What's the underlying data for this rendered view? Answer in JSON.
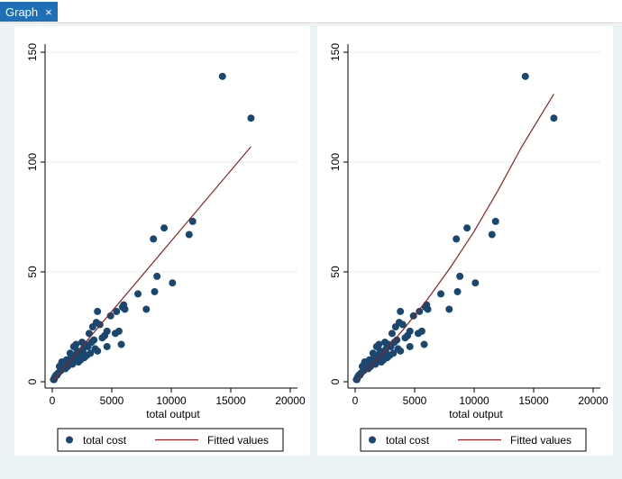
{
  "window": {
    "tab_label": "Graph",
    "close_glyph": "×",
    "close_icon": "close-icon"
  },
  "colors": {
    "tab_bg": "#1f6fb6",
    "outer_bg": "#eaf2f3",
    "plot_bg": "#ffffff",
    "marker": "#1a476f",
    "fit_line": "#8b2323",
    "grid": "#e6eef0"
  },
  "chart_data": [
    {
      "type": "scatter",
      "title": "",
      "xlabel": "total output",
      "ylabel": "",
      "xlim": [
        0,
        20000
      ],
      "ylim": [
        0,
        150
      ],
      "xticks": [
        0,
        5000,
        10000,
        15000,
        20000
      ],
      "yticks": [
        0,
        50,
        100,
        150
      ],
      "grid": true,
      "legend": [
        "total cost",
        "Fitted values"
      ],
      "legend_position": "bottom",
      "series": [
        {
          "name": "total cost",
          "kind": "markers",
          "points": [
            [
              14300,
              139
            ],
            [
              16700,
              120
            ],
            [
              11800,
              73
            ],
            [
              9400,
              70
            ],
            [
              11500,
              67
            ],
            [
              8500,
              65
            ],
            [
              8800,
              48
            ],
            [
              10100,
              45
            ],
            [
              8600,
              41
            ],
            [
              7200,
              40
            ],
            [
              6000,
              35
            ],
            [
              5900,
              34
            ],
            [
              6100,
              33
            ],
            [
              7900,
              33
            ],
            [
              5400,
              32
            ],
            [
              3800,
              32
            ],
            [
              4900,
              30
            ],
            [
              3700,
              27
            ],
            [
              3400,
              25
            ],
            [
              4000,
              26
            ],
            [
              3100,
              22
            ],
            [
              4600,
              23
            ],
            [
              4400,
              21
            ],
            [
              4200,
              20
            ],
            [
              5600,
              23
            ],
            [
              5300,
              22
            ],
            [
              5800,
              17
            ],
            [
              4600,
              16
            ],
            [
              3800,
              14
            ],
            [
              3300,
              18
            ],
            [
              3000,
              16
            ],
            [
              2800,
              17
            ],
            [
              2500,
              18
            ],
            [
              2600,
              15
            ],
            [
              2100,
              14
            ],
            [
              1800,
              16
            ],
            [
              2300,
              12
            ],
            [
              1500,
              13
            ],
            [
              1200,
              10
            ],
            [
              1600,
              11
            ],
            [
              1000,
              8
            ],
            [
              900,
              6
            ],
            [
              700,
              5
            ],
            [
              500,
              4
            ],
            [
              400,
              3
            ],
            [
              300,
              3
            ],
            [
              200,
              2
            ],
            [
              150,
              1
            ],
            [
              100,
              1
            ],
            [
              2000,
              10
            ],
            [
              2400,
              10
            ],
            [
              2900,
              12
            ],
            [
              3200,
              13
            ],
            [
              1300,
              7
            ],
            [
              1700,
              8
            ],
            [
              800,
              9
            ],
            [
              600,
              7
            ],
            [
              1100,
              6
            ],
            [
              2200,
              9
            ],
            [
              2700,
              11
            ],
            [
              1900,
              12
            ],
            [
              3500,
              19
            ],
            [
              3600,
              15
            ],
            [
              2000,
              17
            ],
            [
              1400,
              9
            ],
            [
              2600,
              13
            ]
          ]
        },
        {
          "name": "Fitted values",
          "kind": "line",
          "points": [
            [
              0,
              0
            ],
            [
              16700,
              107
            ]
          ]
        }
      ]
    },
    {
      "type": "scatter",
      "title": "",
      "xlabel": "total output",
      "ylabel": "",
      "xlim": [
        0,
        20000
      ],
      "ylim": [
        0,
        150
      ],
      "xticks": [
        0,
        5000,
        10000,
        15000,
        20000
      ],
      "yticks": [
        0,
        50,
        100,
        150
      ],
      "grid": true,
      "legend": [
        "total cost",
        "Fitted values"
      ],
      "legend_position": "bottom",
      "series": [
        {
          "name": "total cost",
          "kind": "markers",
          "points": [
            [
              14300,
              139
            ],
            [
              16700,
              120
            ],
            [
              11800,
              73
            ],
            [
              9400,
              70
            ],
            [
              11500,
              67
            ],
            [
              8500,
              65
            ],
            [
              8800,
              48
            ],
            [
              10100,
              45
            ],
            [
              8600,
              41
            ],
            [
              7200,
              40
            ],
            [
              6000,
              35
            ],
            [
              5900,
              34
            ],
            [
              6100,
              33
            ],
            [
              7900,
              33
            ],
            [
              5400,
              32
            ],
            [
              3800,
              32
            ],
            [
              4900,
              30
            ],
            [
              3700,
              27
            ],
            [
              3400,
              25
            ],
            [
              4000,
              26
            ],
            [
              3100,
              22
            ],
            [
              4600,
              23
            ],
            [
              4400,
              21
            ],
            [
              4200,
              20
            ],
            [
              5600,
              23
            ],
            [
              5300,
              22
            ],
            [
              5800,
              17
            ],
            [
              4600,
              16
            ],
            [
              3800,
              14
            ],
            [
              3300,
              18
            ],
            [
              3000,
              16
            ],
            [
              2800,
              17
            ],
            [
              2500,
              18
            ],
            [
              2600,
              15
            ],
            [
              2100,
              14
            ],
            [
              1800,
              16
            ],
            [
              2300,
              12
            ],
            [
              1500,
              13
            ],
            [
              1200,
              10
            ],
            [
              1600,
              11
            ],
            [
              1000,
              8
            ],
            [
              900,
              6
            ],
            [
              700,
              5
            ],
            [
              500,
              4
            ],
            [
              400,
              3
            ],
            [
              300,
              3
            ],
            [
              200,
              2
            ],
            [
              150,
              1
            ],
            [
              100,
              1
            ],
            [
              2000,
              10
            ],
            [
              2400,
              10
            ],
            [
              2900,
              12
            ],
            [
              3200,
              13
            ],
            [
              1300,
              7
            ],
            [
              1700,
              8
            ],
            [
              800,
              9
            ],
            [
              600,
              7
            ],
            [
              1100,
              6
            ],
            [
              2200,
              9
            ],
            [
              2700,
              11
            ],
            [
              1900,
              12
            ],
            [
              3500,
              19
            ],
            [
              3600,
              15
            ],
            [
              2000,
              17
            ],
            [
              1400,
              9
            ],
            [
              2600,
              13
            ]
          ]
        },
        {
          "name": "Fitted values",
          "kind": "line",
          "points": [
            [
              0,
              0
            ],
            [
              2000,
              11
            ],
            [
              4000,
              23.5
            ],
            [
              6000,
              37
            ],
            [
              8000,
              52
            ],
            [
              10000,
              68.5
            ],
            [
              12000,
              87
            ],
            [
              14000,
              107
            ],
            [
              16700,
              131
            ]
          ]
        }
      ]
    }
  ]
}
